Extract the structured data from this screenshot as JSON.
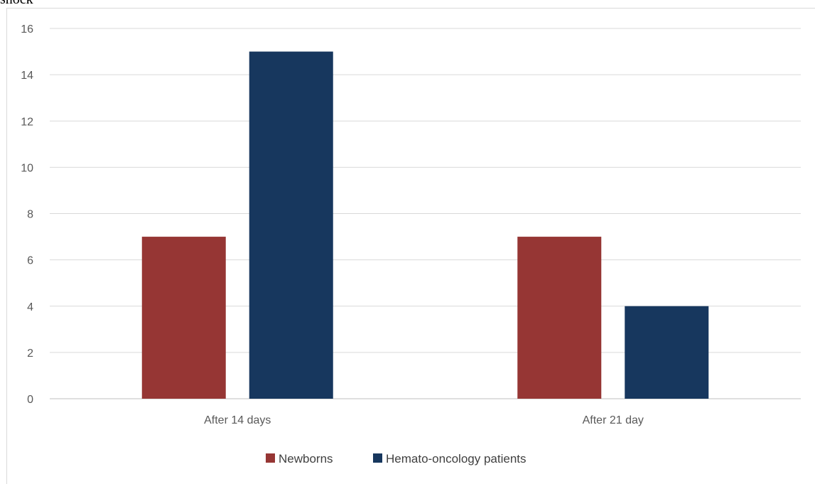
{
  "fragment_text": "shock",
  "chart_data": {
    "type": "bar",
    "categories": [
      "After 14 days",
      "After 21 day"
    ],
    "series": [
      {
        "name": "Newborns",
        "values": [
          7,
          7
        ],
        "color": "#963634"
      },
      {
        "name": "Hemato-oncology patients",
        "values": [
          15,
          4
        ],
        "color": "#17375e"
      }
    ],
    "ylim": [
      0,
      16
    ],
    "yticks": [
      0,
      2,
      4,
      6,
      8,
      10,
      12,
      14,
      16
    ],
    "grid": true,
    "legend_position": "bottom"
  }
}
